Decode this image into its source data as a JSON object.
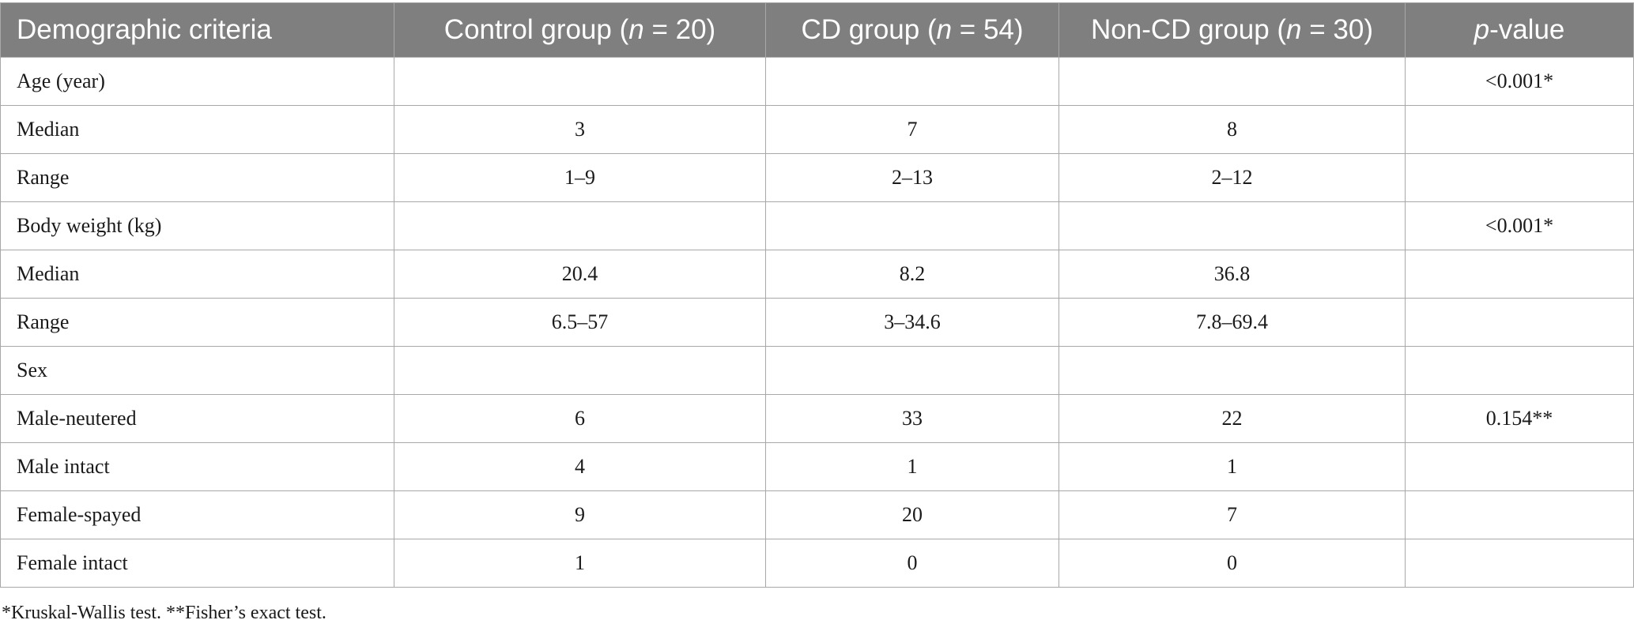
{
  "table": {
    "headers": [
      {
        "pre": "Demographic criteria",
        "it": "",
        "post": ""
      },
      {
        "pre": "Control group (",
        "it": "n",
        "post": " = 20)"
      },
      {
        "pre": "CD group (",
        "it": "n",
        "post": " = 54)"
      },
      {
        "pre": "Non-CD group (",
        "it": "n",
        "post": " = 30)"
      },
      {
        "pre": "",
        "it": "p",
        "post": "-value"
      }
    ],
    "rows": [
      [
        "Age (year)",
        "",
        "",
        "",
        "<0.001*"
      ],
      [
        "Median",
        "3",
        "7",
        "8",
        ""
      ],
      [
        "Range",
        "1–9",
        "2–13",
        "2–12",
        ""
      ],
      [
        "Body weight (kg)",
        "",
        "",
        "",
        "<0.001*"
      ],
      [
        "Median",
        "20.4",
        "8.2",
        "36.8",
        ""
      ],
      [
        "Range",
        "6.5–57",
        "3–34.6",
        "7.8–69.4",
        ""
      ],
      [
        "Sex",
        "",
        "",
        "",
        ""
      ],
      [
        "Male-neutered",
        "6",
        "33",
        "22",
        "0.154**"
      ],
      [
        "Male intact",
        "4",
        "1",
        "1",
        ""
      ],
      [
        "Female-spayed",
        "9",
        "20",
        "7",
        ""
      ],
      [
        "Female intact",
        "1",
        "0",
        "0",
        ""
      ]
    ]
  },
  "footnote": "*Kruskal-Wallis test. **Fisher’s exact test."
}
